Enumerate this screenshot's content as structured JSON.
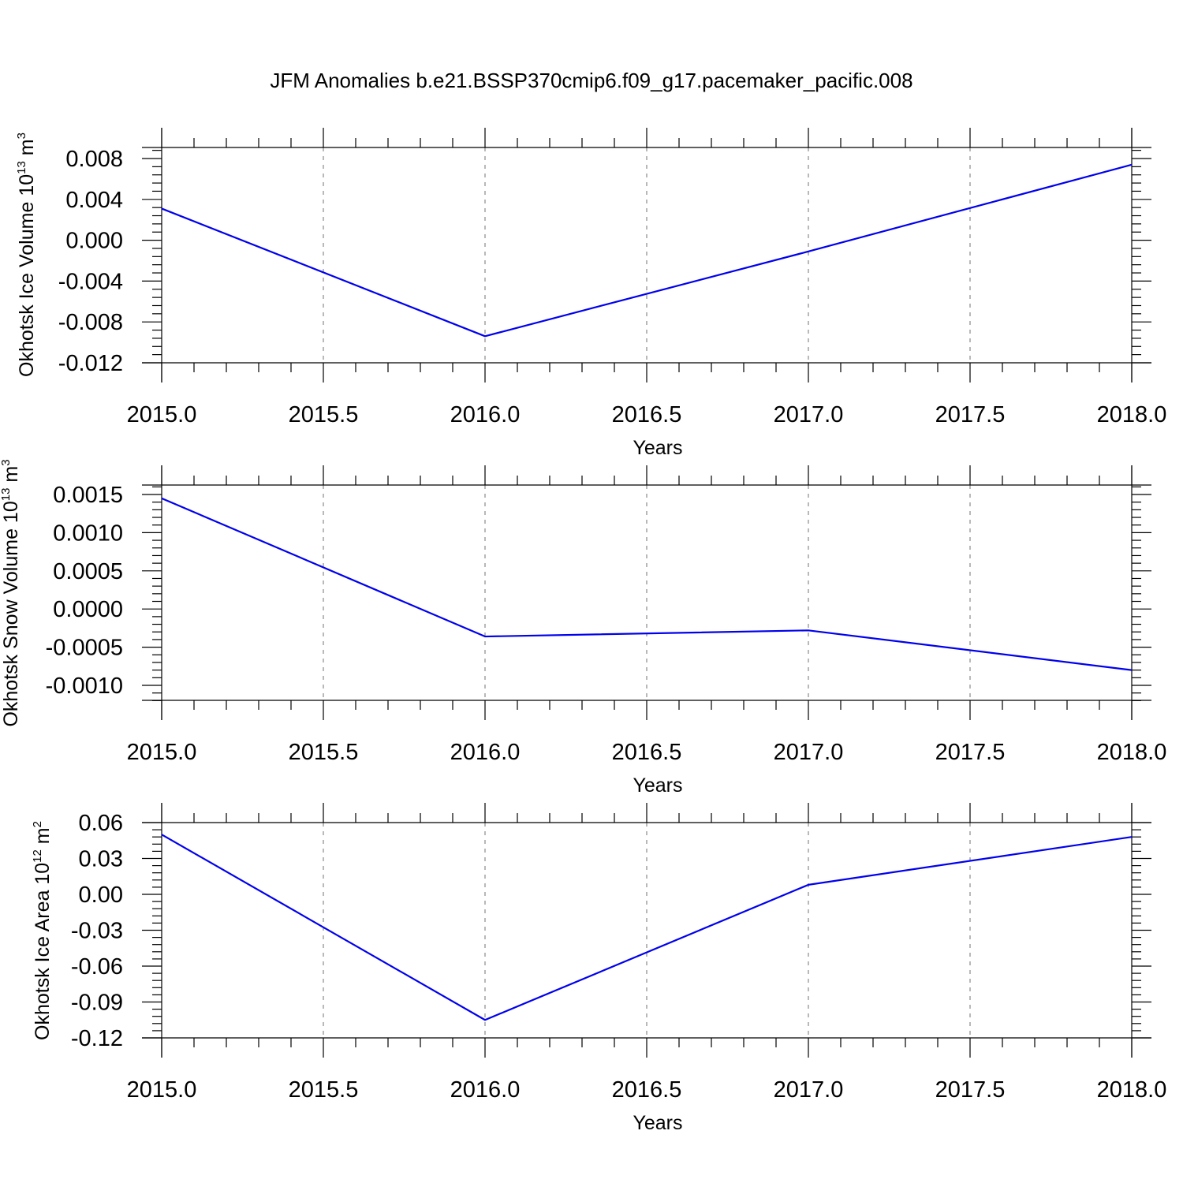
{
  "title": "JFM Anomalies b.e21.BSSP370cmip6.f09_g17.pacemaker_pacific.008",
  "colors": {
    "series": "#0000ee",
    "grid": "#8a8a8a",
    "axis": "#000000"
  },
  "chart_data": [
    {
      "type": "line",
      "title": "",
      "xlabel": "Years",
      "ylabel": "Okhotsk Ice Volume 10",
      "ylabel_exp": "13",
      "ylabel_unit": " m",
      "ylabel_unit_exp": "3",
      "xlim": [
        2015.0,
        2018.0
      ],
      "ylim": [
        -0.012,
        0.009
      ],
      "xticks": [
        "2015.0",
        "2015.5",
        "2016.0",
        "2016.5",
        "2017.0",
        "2017.5",
        "2018.0"
      ],
      "yticks": [
        "0.008",
        "0.004",
        "0.000",
        "-0.004",
        "-0.008",
        "-0.012"
      ],
      "grid": "vertical-dashed",
      "series": [
        {
          "x": [
            2015,
            2016,
            2017,
            2018
          ],
          "y": [
            0.0031,
            -0.0094,
            -0.0011,
            0.0074
          ]
        }
      ]
    },
    {
      "type": "line",
      "title": "",
      "xlabel": "Years",
      "ylabel": "Okhotsk Snow Volume 10",
      "ylabel_exp": "13",
      "ylabel_unit": " m",
      "ylabel_unit_exp": "3",
      "xlim": [
        2015.0,
        2018.0
      ],
      "ylim": [
        -0.0012,
        0.0016
      ],
      "xticks": [
        "2015.0",
        "2015.5",
        "2016.0",
        "2016.5",
        "2017.0",
        "2017.5",
        "2018.0"
      ],
      "yticks": [
        "0.0015",
        "0.0010",
        "0.0005",
        "0.0000",
        "-0.0005",
        "-0.0010"
      ],
      "grid": "vertical-dashed",
      "series": [
        {
          "x": [
            2015,
            2016,
            2017,
            2018
          ],
          "y": [
            0.00145,
            -0.00036,
            -0.00028,
            -0.0008
          ]
        }
      ]
    },
    {
      "type": "line",
      "title": "",
      "xlabel": "Years",
      "ylabel": "Okhotsk Ice Area 10",
      "ylabel_exp": "12",
      "ylabel_unit": " m",
      "ylabel_unit_exp": "2",
      "xlim": [
        2015.0,
        2018.0
      ],
      "ylim": [
        -0.12,
        0.06
      ],
      "xticks": [
        "2015.0",
        "2015.5",
        "2016.0",
        "2016.5",
        "2017.0",
        "2017.5",
        "2018.0"
      ],
      "yticks": [
        "0.06",
        "0.03",
        "0.00",
        "-0.03",
        "-0.06",
        "-0.09",
        "-0.12"
      ],
      "grid": "vertical-dashed",
      "series": [
        {
          "x": [
            2015,
            2016,
            2017,
            2018
          ],
          "y": [
            0.05,
            -0.105,
            0.008,
            0.048
          ]
        }
      ]
    }
  ]
}
